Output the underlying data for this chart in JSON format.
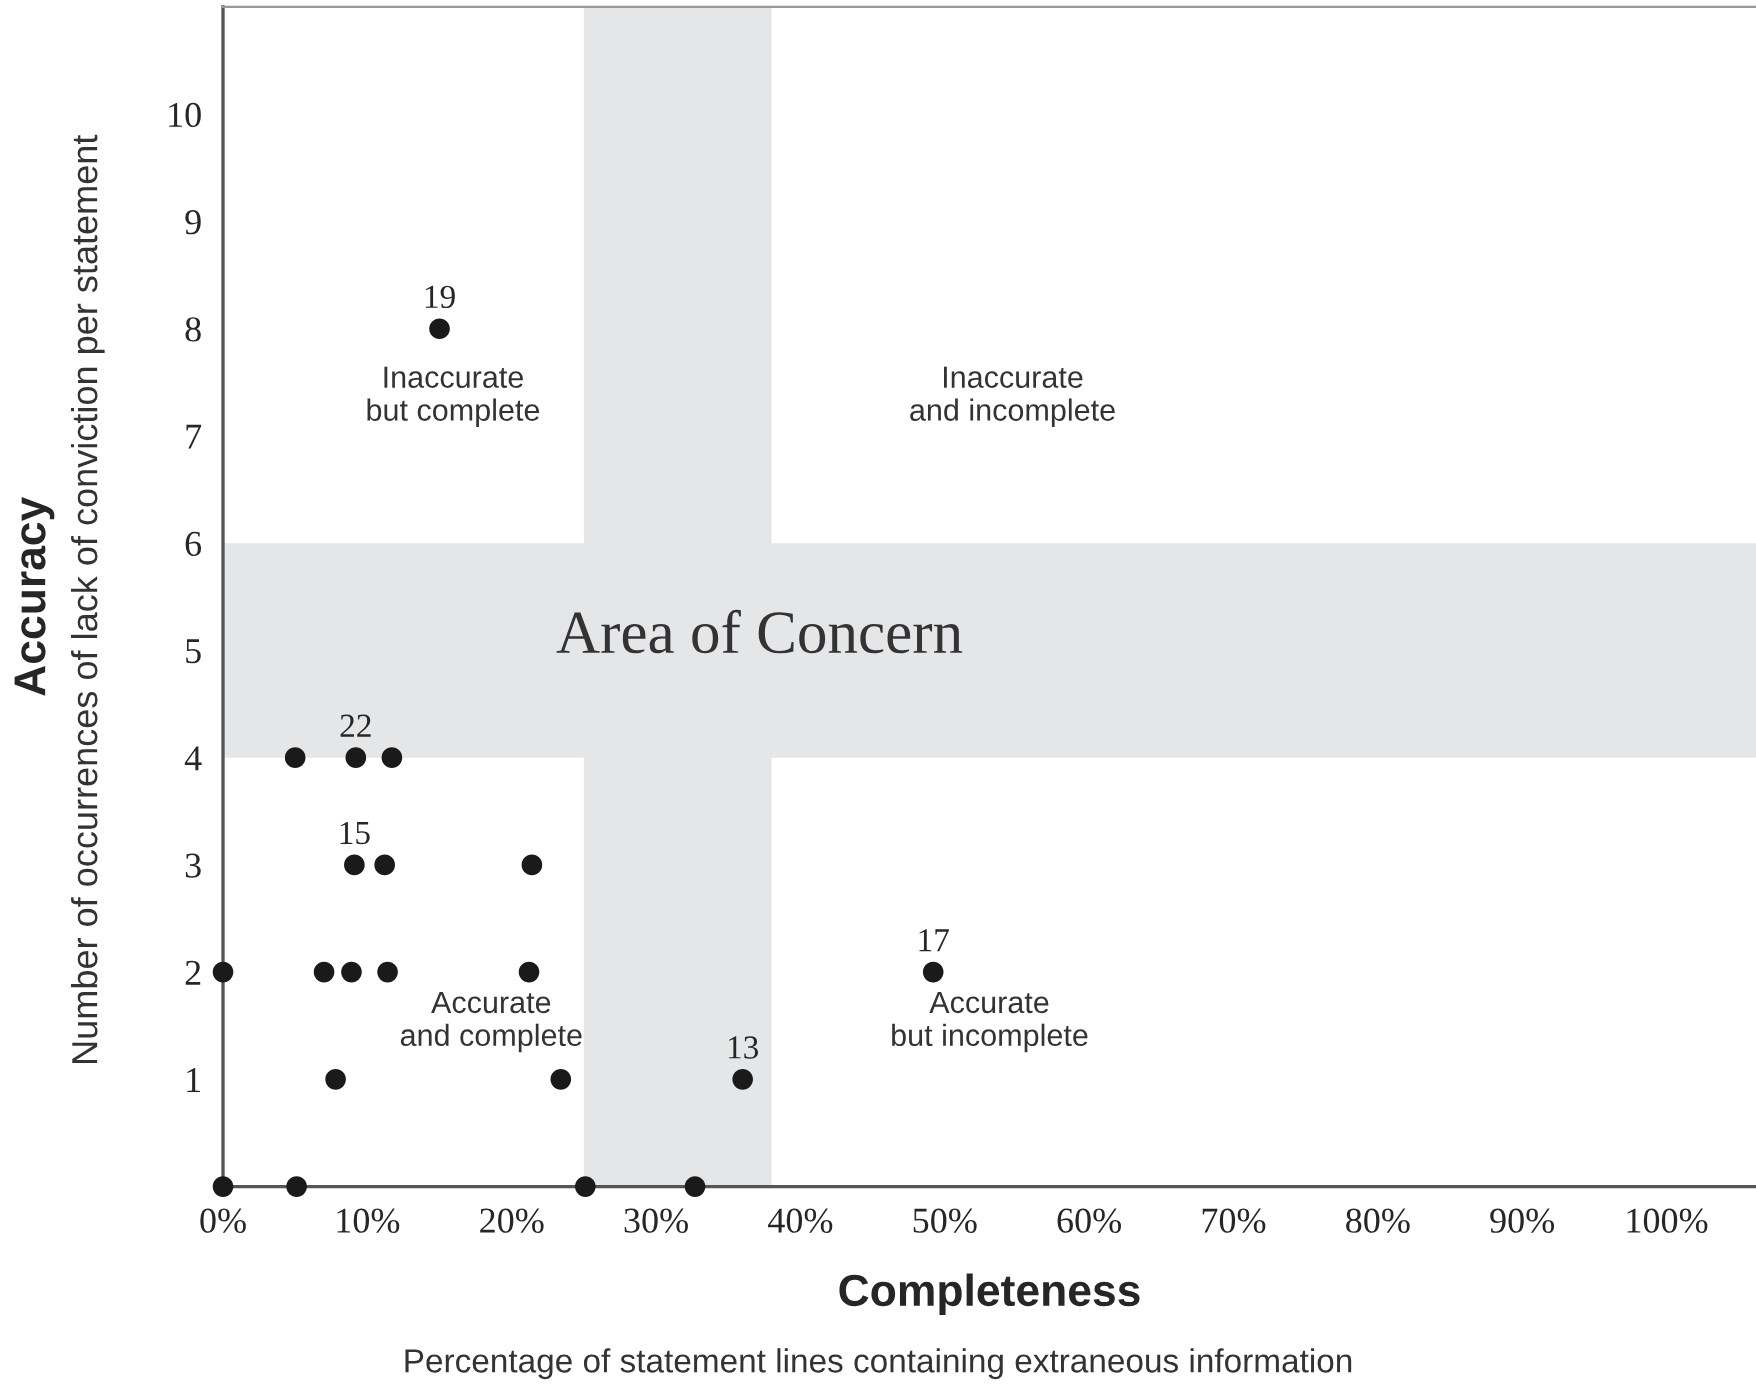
{
  "chart_data": {
    "type": "scatter",
    "xlabel": "Completeness",
    "ylabel": "Accuracy",
    "x": [
      0,
      5.1,
      25.1,
      32.7,
      7.8,
      23.4,
      36.0,
      0,
      7.0,
      8.9,
      11.4,
      21.2,
      49.2,
      9.1,
      11.2,
      21.4,
      5.0,
      9.2,
      11.7,
      15.0
    ],
    "series": [
      {
        "color": "#1a1a1a",
        "values": [
          0,
          0,
          0,
          0,
          1,
          1,
          1,
          2,
          2,
          2,
          2,
          2,
          2,
          3,
          3,
          3,
          4,
          4,
          4,
          8
        ]
      }
    ],
    "marker": "circle",
    "grid": false,
    "legend": false,
    "xlim": [
      0,
      106.2
    ],
    "ylim": [
      0,
      11
    ],
    "xticks": [
      {
        "value": 0,
        "label": "0%"
      },
      {
        "value": 10,
        "label": "10%"
      },
      {
        "value": 20,
        "label": "20%"
      },
      {
        "value": 30,
        "label": "30%"
      },
      {
        "value": 40,
        "label": "40%"
      },
      {
        "value": 50,
        "label": "50%"
      },
      {
        "value": 60,
        "label": "60%"
      },
      {
        "value": 70,
        "label": "70%"
      },
      {
        "value": 80,
        "label": "80%"
      },
      {
        "value": 90,
        "label": "90%"
      },
      {
        "value": 100,
        "label": "100%"
      }
    ],
    "yticks": [
      1,
      2,
      3,
      4,
      5,
      6,
      7,
      8,
      9,
      10
    ],
    "bands": [
      {
        "axis": "x",
        "from": 25,
        "to": 38,
        "color": "#e5e6e8"
      },
      {
        "axis": "y",
        "from": 4,
        "to": 6,
        "color": "#e5e6e8"
      }
    ],
    "annotations": [
      "Percentage of statement lines containing extraneous information",
      "Number of occurrences of lack of conviction per statement",
      "Area of Concern",
      "Inaccurate\nbut complete",
      "Inaccurate\nand incomplete",
      "Accurate\nand complete",
      "Accurate\nbut incomplete",
      {
        "text": "19",
        "x": 15.0,
        "y": 8
      },
      {
        "text": "22",
        "x": 9.2,
        "y": 4
      },
      {
        "text": "15",
        "x": 9.1,
        "y": 3
      },
      {
        "text": "17",
        "x": 49.2,
        "y": 2
      },
      {
        "text": "13",
        "x": 36.0,
        "y": 1
      }
    ]
  }
}
